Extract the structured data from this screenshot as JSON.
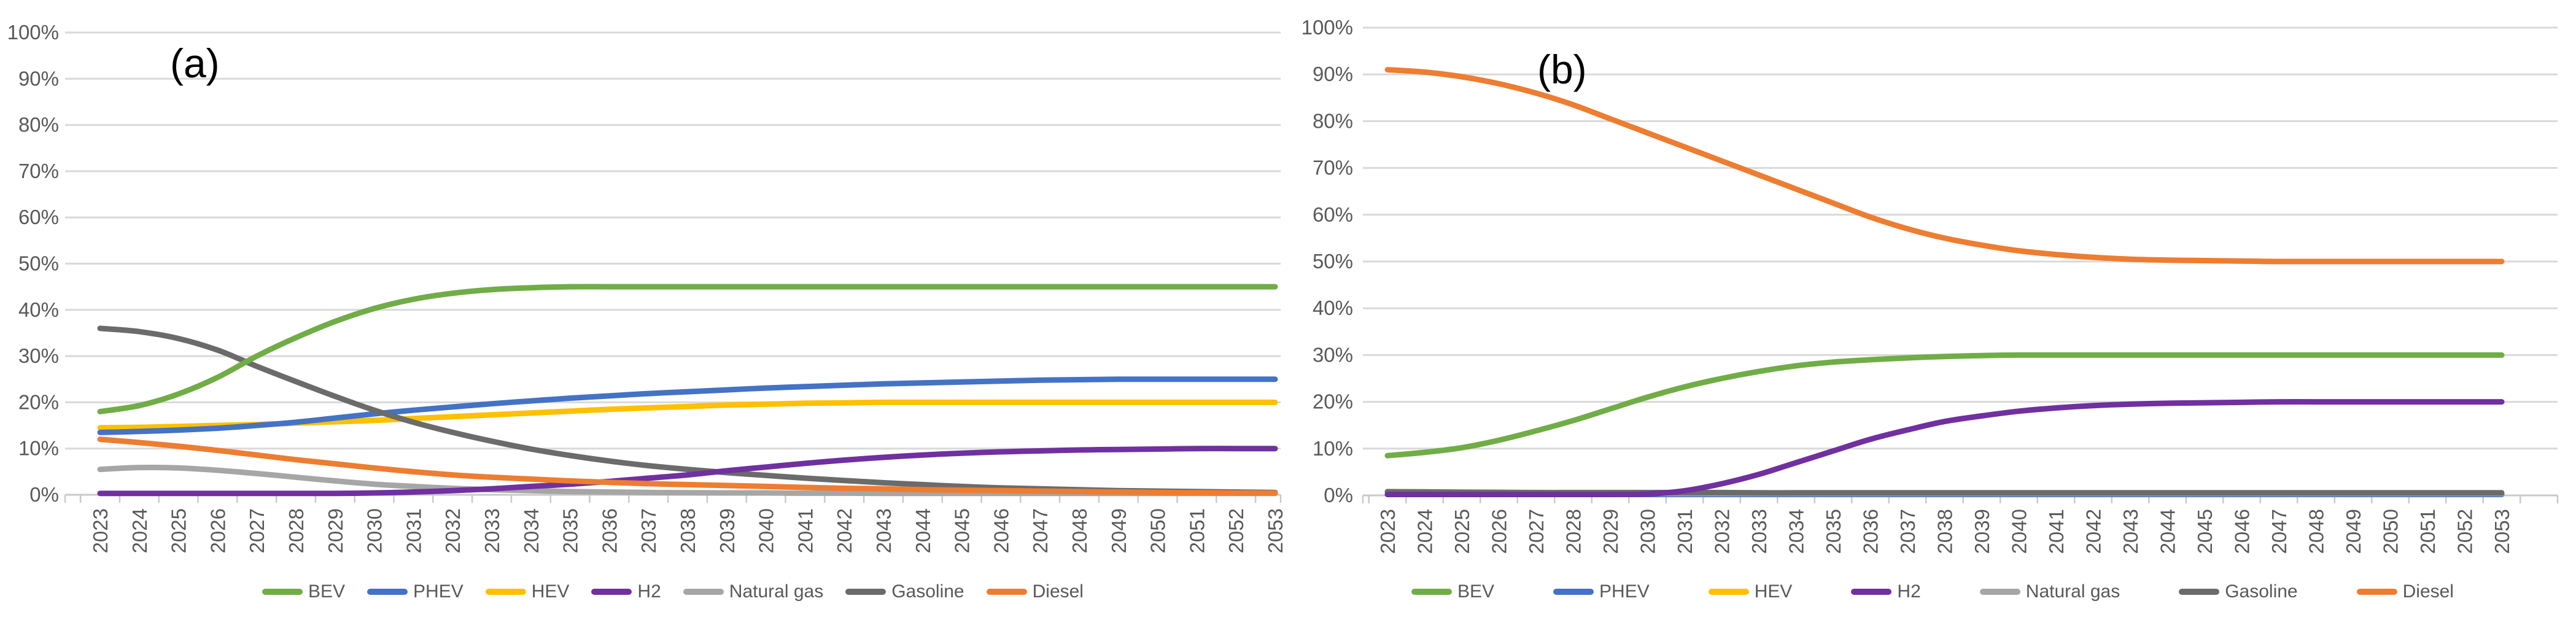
{
  "styles": {
    "background": "#FFFFFF",
    "gridline_color": "#D9D9D9",
    "axis_line_color": "#C9C9C9",
    "axis_text_color": "#595959",
    "title_color": "#000000"
  },
  "chart_data": [
    {
      "panel_label": "(a)",
      "type": "line",
      "grid": true,
      "legend_position": "bottom",
      "xlabel": "",
      "ylabel": "",
      "ylim": [
        0,
        100
      ],
      "y_axis": {
        "ticks": [
          "0%",
          "10%",
          "20%",
          "30%",
          "40%",
          "50%",
          "60%",
          "70%",
          "80%",
          "90%",
          "100%"
        ]
      },
      "x": [
        "2023",
        "2024",
        "2025",
        "2026",
        "2027",
        "2028",
        "2029",
        "2030",
        "2031",
        "2032",
        "2033",
        "2034",
        "2035",
        "2036",
        "2037",
        "2038",
        "2039",
        "2040",
        "2041",
        "2042",
        "2043",
        "2044",
        "2045",
        "2046",
        "2047",
        "2048",
        "2049",
        "2050",
        "2051",
        "2052",
        "2053"
      ],
      "series": [
        {
          "name": "BEV",
          "color": "#70AD47",
          "values": [
            18,
            19.3,
            21.8,
            25.4,
            30,
            34,
            37.5,
            40.3,
            42.3,
            43.6,
            44.4,
            44.8,
            45,
            45,
            45,
            45,
            45,
            45,
            45,
            45,
            45,
            45,
            45,
            45,
            45,
            45,
            45,
            45,
            45,
            45,
            45
          ]
        },
        {
          "name": "PHEV",
          "color": "#4472C4",
          "values": [
            13.5,
            13.7,
            14,
            14.4,
            15,
            15.7,
            16.6,
            17.5,
            18.3,
            19,
            19.7,
            20.3,
            20.9,
            21.4,
            21.9,
            22.3,
            22.7,
            23.1,
            23.4,
            23.7,
            24,
            24.2,
            24.4,
            24.6,
            24.8,
            24.9,
            25,
            25,
            25,
            25,
            25
          ]
        },
        {
          "name": "HEV",
          "color": "#FFC000",
          "values": [
            14.5,
            14.6,
            14.8,
            15,
            15.2,
            15.5,
            15.8,
            16.1,
            16.5,
            16.9,
            17.3,
            17.7,
            18.1,
            18.5,
            18.8,
            19.1,
            19.4,
            19.6,
            19.8,
            19.9,
            20,
            20,
            20,
            20,
            20,
            20,
            20,
            20,
            20,
            20,
            20
          ]
        },
        {
          "name": "H2",
          "color": "#7030A0",
          "values": [
            0.3,
            0.3,
            0.3,
            0.3,
            0.3,
            0.3,
            0.3,
            0.4,
            0.6,
            0.9,
            1.3,
            1.8,
            2.3,
            2.9,
            3.6,
            4.3,
            5.2,
            6,
            6.8,
            7.5,
            8.1,
            8.6,
            9,
            9.3,
            9.5,
            9.7,
            9.8,
            9.9,
            10,
            10,
            10
          ]
        },
        {
          "name": "Natural gas",
          "color": "#A6A6A6",
          "values": [
            5.5,
            5.9,
            5.8,
            5.3,
            4.6,
            3.8,
            3,
            2.3,
            1.8,
            1.4,
            1.1,
            0.9,
            0.7,
            0.6,
            0.5,
            0.45,
            0.4,
            0.4,
            0.35,
            0.35,
            0.3,
            0.3,
            0.3,
            0.3,
            0.3,
            0.3,
            0.3,
            0.3,
            0.3,
            0.3,
            0.3
          ]
        },
        {
          "name": "Gasoline",
          "color": "#6B6B6B",
          "values": [
            36,
            35.3,
            33.8,
            31.3,
            27.8,
            24.5,
            21.3,
            18.3,
            15.7,
            13.5,
            11.6,
            9.9,
            8.5,
            7.3,
            6.3,
            5.5,
            4.8,
            4.2,
            3.6,
            3.1,
            2.6,
            2.2,
            1.8,
            1.5,
            1.3,
            1.1,
            0.9,
            0.8,
            0.7,
            0.6,
            0.5
          ]
        },
        {
          "name": "Diesel",
          "color": "#ED7D31",
          "values": [
            12,
            11.3,
            10.5,
            9.6,
            8.6,
            7.6,
            6.7,
            5.8,
            5,
            4.3,
            3.8,
            3.4,
            3,
            2.7,
            2.4,
            2.2,
            2,
            1.8,
            1.6,
            1.4,
            1.3,
            1.1,
            1,
            0.9,
            0.8,
            0.7,
            0.6,
            0.5,
            0.45,
            0.4,
            0.4
          ]
        }
      ]
    },
    {
      "panel_label": "(b)",
      "type": "line",
      "grid": true,
      "legend_position": "bottom",
      "xlabel": "",
      "ylabel": "",
      "ylim": [
        0,
        100
      ],
      "y_axis": {
        "ticks": [
          "0%",
          "10%",
          "20%",
          "30%",
          "40%",
          "50%",
          "60%",
          "70%",
          "80%",
          "90%",
          "100%"
        ]
      },
      "x": [
        "2023",
        "2024",
        "2025",
        "2026",
        "2027",
        "2028",
        "2029",
        "2030",
        "2031",
        "2032",
        "2033",
        "2034",
        "2035",
        "2036",
        "2037",
        "2038",
        "2039",
        "2040",
        "2041",
        "2042",
        "2043",
        "2044",
        "2045",
        "2046",
        "2047",
        "2048",
        "2049",
        "2050",
        "2051",
        "2052",
        "2053"
      ],
      "series": [
        {
          "name": "BEV",
          "color": "#70AD47",
          "values": [
            8.5,
            9.2,
            10.2,
            11.8,
            13.8,
            16,
            18.5,
            21,
            23.2,
            25,
            26.5,
            27.7,
            28.5,
            29,
            29.4,
            29.7,
            29.9,
            30,
            30,
            30,
            30,
            30,
            30,
            30,
            30,
            30,
            30,
            30,
            30,
            30,
            30
          ]
        },
        {
          "name": "PHEV",
          "color": "#4472C4",
          "values": [
            0.2,
            0.2,
            0.2,
            0.2,
            0.2,
            0.2,
            0.2,
            0.2,
            0.2,
            0.2,
            0.2,
            0.2,
            0.2,
            0.2,
            0.2,
            0.2,
            0.2,
            0.2,
            0.2,
            0.2,
            0.2,
            0.2,
            0.2,
            0.2,
            0.2,
            0.2,
            0.2,
            0.2,
            0.2,
            0.2,
            0.2
          ]
        },
        {
          "name": "HEV",
          "color": "#FFC000",
          "values": [
            0.3,
            0.3,
            0.3,
            0.3,
            0.3,
            0.3,
            0.3,
            0.3,
            0.3,
            0.3,
            0.3,
            0.3,
            0.3,
            0.3,
            0.3,
            0.3,
            0.3,
            0.3,
            0.3,
            0.3,
            0.3,
            0.3,
            0.3,
            0.3,
            0.3,
            0.3,
            0.3,
            0.3,
            0.3,
            0.3,
            0.3
          ]
        },
        {
          "name": "H2",
          "color": "#7030A0",
          "values": [
            0.2,
            0.2,
            0.2,
            0.2,
            0.2,
            0.2,
            0.2,
            0.3,
            1,
            2.5,
            4.5,
            7,
            9.5,
            12,
            14,
            15.8,
            17,
            18,
            18.7,
            19.2,
            19.5,
            19.7,
            19.8,
            19.9,
            20,
            20,
            20,
            20,
            20,
            20,
            20
          ]
        },
        {
          "name": "Natural gas",
          "color": "#A6A6A6",
          "values": [
            0.4,
            0.4,
            0.4,
            0.4,
            0.4,
            0.4,
            0.4,
            0.4,
            0.4,
            0.4,
            0.4,
            0.4,
            0.4,
            0.4,
            0.4,
            0.4,
            0.4,
            0.4,
            0.4,
            0.4,
            0.4,
            0.4,
            0.4,
            0.4,
            0.4,
            0.4,
            0.4,
            0.4,
            0.4,
            0.4,
            0.4
          ]
        },
        {
          "name": "Gasoline",
          "color": "#6B6B6B",
          "values": [
            0.8,
            0.75,
            0.7,
            0.65,
            0.6,
            0.6,
            0.6,
            0.6,
            0.6,
            0.6,
            0.55,
            0.55,
            0.55,
            0.55,
            0.55,
            0.55,
            0.55,
            0.55,
            0.55,
            0.55,
            0.55,
            0.55,
            0.55,
            0.55,
            0.55,
            0.55,
            0.55,
            0.55,
            0.55,
            0.55,
            0.55
          ]
        },
        {
          "name": "Diesel",
          "color": "#ED7D31",
          "values": [
            91,
            90.5,
            89.5,
            88,
            86,
            83.5,
            80.5,
            77.5,
            74.5,
            71.5,
            68.5,
            65.5,
            62.5,
            59.5,
            57,
            55,
            53.5,
            52.3,
            51.5,
            50.9,
            50.5,
            50.3,
            50.2,
            50.1,
            50,
            50,
            50,
            50,
            50,
            50,
            50
          ]
        }
      ]
    }
  ]
}
